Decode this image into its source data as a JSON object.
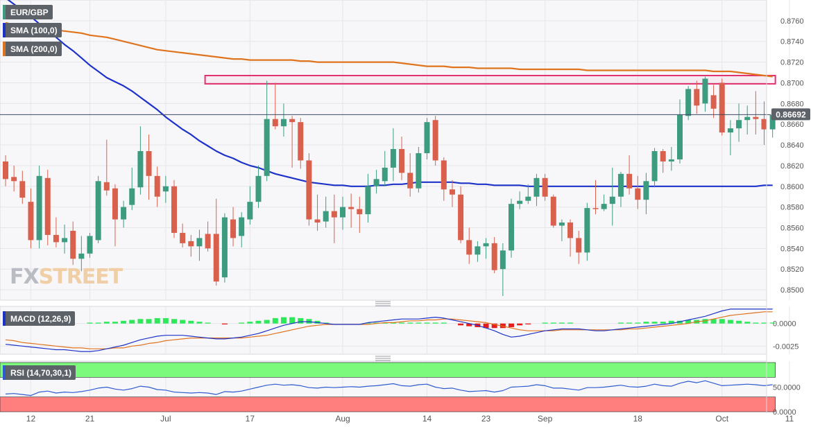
{
  "legend": {
    "symbol": "EUR/GBP",
    "sma100": "SMA (100,0)",
    "sma200": "SMA (200,0)",
    "macd": "MACD (12,26,9)",
    "rsi": "RSI (14,70,30,1)"
  },
  "watermark": {
    "part1": "FX",
    "part2": "STREET",
    "logo_colors": [
      "#b9bcc2",
      "#f1cfa6"
    ]
  },
  "colors": {
    "up": "#3d9b80",
    "down": "#d9604c",
    "sma100": "#1c32c8",
    "sma200": "#e0731d",
    "resistance_box": "#e3316f",
    "macd_line": "#1c32c8",
    "signal_line": "#e0731d",
    "hist_up": "#2ee85a",
    "hist_down": "#e51d1d",
    "rsi_line": "#2f5bd1",
    "rsi_overbought": "#7cfa7c",
    "rsi_oversold": "#ff7f7f",
    "current_price_bg": "#5d6168"
  },
  "chart_data": [
    {
      "type": "candlestick",
      "symbol": "EUR/GBP",
      "timeframe": "daily",
      "current_price": "0.86692",
      "current_price_label": "0.86692",
      "y_ticks": [
        "0.8760",
        "0.8740",
        "0.8720",
        "0.8700",
        "0.8680",
        "0.8660",
        "0.8640",
        "0.8620",
        "0.8600",
        "0.8580",
        "0.8560",
        "0.8540",
        "0.8520",
        "0.8500"
      ],
      "y_tick_values": [
        0.876,
        0.874,
        0.872,
        0.87,
        0.868,
        0.866,
        0.864,
        0.862,
        0.86,
        0.858,
        0.856,
        0.854,
        0.852,
        0.85
      ],
      "ylim": [
        0.849,
        0.878
      ],
      "x_ticks": [
        "12",
        "21",
        "Jul",
        "17",
        "Aug",
        "14",
        "23",
        "Sep",
        "18",
        "Oct",
        "11"
      ],
      "x_tick_index": [
        3,
        10,
        19,
        29,
        40,
        50,
        57,
        64,
        75,
        85,
        93
      ],
      "resistance_zone": {
        "y_low": 0.8699,
        "y_high": 0.8707,
        "from_index": 24,
        "to_index": 91
      },
      "candles": [
        [
          0.8624,
          0.8607,
          0.863,
          0.86
        ],
        [
          0.8609,
          0.8605,
          0.862,
          0.8595
        ],
        [
          0.8605,
          0.8589,
          0.8615,
          0.8583
        ],
        [
          0.8585,
          0.8548,
          0.8598,
          0.854
        ],
        [
          0.8548,
          0.861,
          0.862,
          0.854
        ],
        [
          0.8608,
          0.8553,
          0.8616,
          0.8543
        ],
        [
          0.8553,
          0.8546,
          0.857,
          0.8541
        ],
        [
          0.8546,
          0.855,
          0.8563,
          0.8535
        ],
        [
          0.8557,
          0.853,
          0.8566,
          0.8524
        ],
        [
          0.853,
          0.8535,
          0.8552,
          0.8518
        ],
        [
          0.8535,
          0.8552,
          0.8555,
          0.8531
        ],
        [
          0.8548,
          0.8605,
          0.861,
          0.8545
        ],
        [
          0.8604,
          0.8596,
          0.8645,
          0.8591
        ],
        [
          0.8598,
          0.8568,
          0.8602,
          0.8542
        ],
        [
          0.8568,
          0.858,
          0.8586,
          0.856
        ],
        [
          0.8582,
          0.8598,
          0.8618,
          0.8577
        ],
        [
          0.8599,
          0.8634,
          0.8658,
          0.8592
        ],
        [
          0.8634,
          0.861,
          0.865,
          0.8587
        ],
        [
          0.861,
          0.859,
          0.8619,
          0.858
        ],
        [
          0.8595,
          0.86,
          0.861,
          0.8584
        ],
        [
          0.86,
          0.8555,
          0.8606,
          0.855
        ],
        [
          0.8555,
          0.8545,
          0.8564,
          0.8541
        ],
        [
          0.8547,
          0.8542,
          0.8553,
          0.8532
        ],
        [
          0.8542,
          0.855,
          0.8558,
          0.8528
        ],
        [
          0.8554,
          0.854,
          0.8566,
          0.8537
        ],
        [
          0.8554,
          0.8508,
          0.8588,
          0.8504
        ],
        [
          0.8512,
          0.857,
          0.8574,
          0.8507
        ],
        [
          0.8568,
          0.855,
          0.858,
          0.8542
        ],
        [
          0.8552,
          0.857,
          0.8575,
          0.8541
        ],
        [
          0.8568,
          0.8585,
          0.86,
          0.8563
        ],
        [
          0.8585,
          0.861,
          0.862,
          0.8579
        ],
        [
          0.861,
          0.8665,
          0.8702,
          0.8605
        ],
        [
          0.8665,
          0.8658,
          0.87,
          0.8655
        ],
        [
          0.8658,
          0.8665,
          0.868,
          0.8648
        ],
        [
          0.8665,
          0.8662,
          0.8668,
          0.8618
        ],
        [
          0.8662,
          0.8625,
          0.8666,
          0.8617
        ],
        [
          0.8625,
          0.8568,
          0.8632,
          0.8562
        ],
        [
          0.8568,
          0.8565,
          0.8592,
          0.8557
        ],
        [
          0.8566,
          0.8576,
          0.859,
          0.856
        ],
        [
          0.8576,
          0.857,
          0.8592,
          0.8545
        ],
        [
          0.857,
          0.858,
          0.859,
          0.8558
        ],
        [
          0.858,
          0.8578,
          0.8593,
          0.856
        ],
        [
          0.8578,
          0.8573,
          0.859,
          0.8555
        ],
        [
          0.8573,
          0.86,
          0.8612,
          0.8565
        ],
        [
          0.86,
          0.8607,
          0.8616,
          0.8593
        ],
        [
          0.8605,
          0.8618,
          0.8634,
          0.86
        ],
        [
          0.8618,
          0.8636,
          0.8656,
          0.8605
        ],
        [
          0.8636,
          0.8613,
          0.8648,
          0.8606
        ],
        [
          0.8613,
          0.8598,
          0.8632,
          0.859
        ],
        [
          0.8598,
          0.8632,
          0.8638,
          0.8594
        ],
        [
          0.8632,
          0.8662,
          0.8666,
          0.8626
        ],
        [
          0.8664,
          0.8625,
          0.8668,
          0.862
        ],
        [
          0.8625,
          0.8597,
          0.8628,
          0.8586
        ],
        [
          0.8597,
          0.8592,
          0.8606,
          0.858
        ],
        [
          0.8592,
          0.8548,
          0.86,
          0.8545
        ],
        [
          0.8548,
          0.8534,
          0.856,
          0.8525
        ],
        [
          0.8534,
          0.8542,
          0.8547,
          0.8527
        ],
        [
          0.8542,
          0.8545,
          0.855,
          0.853
        ],
        [
          0.8545,
          0.8519,
          0.8551,
          0.8516
        ],
        [
          0.852,
          0.8538,
          0.8545,
          0.8494
        ],
        [
          0.8538,
          0.8583,
          0.8588,
          0.8531
        ],
        [
          0.8583,
          0.8586,
          0.8595,
          0.8578
        ],
        [
          0.8586,
          0.859,
          0.8602,
          0.8583
        ],
        [
          0.859,
          0.8608,
          0.8612,
          0.8581
        ],
        [
          0.8608,
          0.859,
          0.8612,
          0.8586
        ],
        [
          0.859,
          0.8562,
          0.8592,
          0.856
        ],
        [
          0.8562,
          0.8565,
          0.8568,
          0.8547
        ],
        [
          0.8565,
          0.855,
          0.8568,
          0.8532
        ],
        [
          0.855,
          0.8536,
          0.8557,
          0.8525
        ],
        [
          0.8536,
          0.8579,
          0.8584,
          0.8528
        ],
        [
          0.8579,
          0.8578,
          0.8606,
          0.8573
        ],
        [
          0.8578,
          0.8583,
          0.8592,
          0.8576
        ],
        [
          0.8583,
          0.859,
          0.8618,
          0.8562
        ],
        [
          0.859,
          0.8612,
          0.8614,
          0.858
        ],
        [
          0.8612,
          0.8598,
          0.863,
          0.8592
        ],
        [
          0.8598,
          0.8587,
          0.861,
          0.8578
        ],
        [
          0.8587,
          0.8605,
          0.8613,
          0.8573
        ],
        [
          0.8605,
          0.8634,
          0.8637,
          0.8599
        ],
        [
          0.8634,
          0.8624,
          0.8636,
          0.8613
        ],
        [
          0.8624,
          0.8626,
          0.8638,
          0.8615
        ],
        [
          0.8626,
          0.8669,
          0.8684,
          0.8622
        ],
        [
          0.8668,
          0.8694,
          0.8697,
          0.8664
        ],
        [
          0.8694,
          0.8678,
          0.8702,
          0.867
        ],
        [
          0.868,
          0.8704,
          0.8706,
          0.8672
        ],
        [
          0.8688,
          0.8675,
          0.8698,
          0.8666
        ],
        [
          0.87,
          0.8652,
          0.8704,
          0.8649
        ],
        [
          0.8652,
          0.8656,
          0.8664,
          0.863
        ],
        [
          0.8656,
          0.8664,
          0.868,
          0.8643
        ],
        [
          0.8664,
          0.8667,
          0.8678,
          0.865
        ],
        [
          0.8667,
          0.8665,
          0.8692,
          0.865
        ],
        [
          0.8665,
          0.8655,
          0.8682,
          0.864
        ],
        [
          0.8655,
          0.8669,
          0.8672,
          0.8647
        ]
      ],
      "sma100": [
        0.8782,
        0.8776,
        0.877,
        0.8764,
        0.8757,
        0.8751,
        0.8744,
        0.8737,
        0.8731,
        0.8724,
        0.8717,
        0.8711,
        0.8705,
        0.8701,
        0.8697,
        0.8692,
        0.8686,
        0.868,
        0.8674,
        0.8667,
        0.8661,
        0.8655,
        0.865,
        0.8644,
        0.8639,
        0.8634,
        0.863,
        0.8627,
        0.8623,
        0.862,
        0.8618,
        0.8615,
        0.8612,
        0.861,
        0.8608,
        0.8606,
        0.8604,
        0.8603,
        0.8602,
        0.8601,
        0.8601,
        0.86,
        0.86,
        0.86,
        0.8601,
        0.8601,
        0.8602,
        0.8602,
        0.8603,
        0.8604,
        0.8604,
        0.8604,
        0.8604,
        0.8604,
        0.8603,
        0.8603,
        0.8602,
        0.8602,
        0.8601,
        0.8601,
        0.8601,
        0.8601,
        0.86,
        0.86,
        0.86,
        0.86,
        0.86,
        0.86,
        0.86,
        0.86,
        0.86,
        0.86,
        0.86,
        0.86,
        0.86,
        0.86,
        0.86,
        0.86,
        0.86,
        0.86,
        0.86,
        0.86,
        0.86,
        0.86,
        0.86,
        0.86,
        0.86,
        0.86,
        0.86,
        0.86,
        0.8601,
        0.8601
      ],
      "sma200": [
        0.8758,
        0.8756,
        0.8755,
        0.8754,
        0.8753,
        0.8752,
        0.8751,
        0.875,
        0.8749,
        0.8748,
        0.8746,
        0.8745,
        0.8744,
        0.8742,
        0.874,
        0.8738,
        0.8736,
        0.8734,
        0.8732,
        0.8731,
        0.873,
        0.8729,
        0.8728,
        0.8727,
        0.8726,
        0.8725,
        0.8724,
        0.8723,
        0.8723,
        0.8722,
        0.8722,
        0.8722,
        0.8722,
        0.8722,
        0.8722,
        0.8721,
        0.8721,
        0.872,
        0.872,
        0.872,
        0.872,
        0.872,
        0.872,
        0.872,
        0.872,
        0.872,
        0.872,
        0.8719,
        0.8718,
        0.8717,
        0.8716,
        0.8716,
        0.8716,
        0.8715,
        0.8715,
        0.8715,
        0.8714,
        0.8714,
        0.8714,
        0.8714,
        0.8714,
        0.8713,
        0.8713,
        0.8713,
        0.8713,
        0.8713,
        0.8713,
        0.8713,
        0.8713,
        0.8712,
        0.8712,
        0.8712,
        0.8712,
        0.8712,
        0.8712,
        0.8712,
        0.8712,
        0.8712,
        0.8712,
        0.8712,
        0.8712,
        0.8712,
        0.8712,
        0.8712,
        0.8711,
        0.8711,
        0.8711,
        0.871,
        0.8709,
        0.8708,
        0.8707,
        0.8706
      ]
    },
    {
      "type": "macd",
      "title": "MACD (12,26,9)",
      "y_ticks": [
        "0.0000",
        "-0.0025"
      ],
      "y_tick_values": [
        0.0,
        -0.0025
      ],
      "ylim": [
        -0.0034,
        0.0019
      ],
      "macd": [
        -0.0023,
        -0.0024,
        -0.0025,
        -0.0026,
        -0.0027,
        -0.0028,
        -0.0029,
        -0.0029,
        -0.003,
        -0.0031,
        -0.0031,
        -0.003,
        -0.0028,
        -0.0026,
        -0.0024,
        -0.0021,
        -0.0018,
        -0.0016,
        -0.0014,
        -0.0013,
        -0.0013,
        -0.0013,
        -0.0014,
        -0.0015,
        -0.0016,
        -0.0017,
        -0.0017,
        -0.0016,
        -0.0015,
        -0.0013,
        -0.0011,
        -0.0008,
        -0.0005,
        -0.0002,
        0.0,
        0.0002,
        0.0002,
        0.0001,
        0.0,
        -0.0001,
        -0.0001,
        -0.0001,
        -0.0001,
        0.0001,
        0.0002,
        0.0003,
        0.0004,
        0.0005,
        0.0005,
        0.0005,
        0.0006,
        0.0007,
        0.0006,
        0.0004,
        0.0002,
        0.0,
        -0.0002,
        -0.0005,
        -0.0008,
        -0.0012,
        -0.0015,
        -0.0014,
        -0.0012,
        -0.001,
        -0.0008,
        -0.0007,
        -0.0006,
        -0.0006,
        -0.0006,
        -0.0007,
        -0.0008,
        -0.0008,
        -0.0007,
        -0.0006,
        -0.0005,
        -0.0004,
        -0.0003,
        -0.0002,
        -0.0001,
        0.0,
        0.0002,
        0.0004,
        0.0006,
        0.0008,
        0.0011,
        0.0014,
        0.0016,
        0.0016,
        0.0016,
        0.0016,
        0.0016,
        0.0016
      ],
      "signal": [
        -0.0018,
        -0.0019,
        -0.0021,
        -0.0022,
        -0.0023,
        -0.0024,
        -0.0025,
        -0.0026,
        -0.0027,
        -0.0027,
        -0.0028,
        -0.0028,
        -0.0028,
        -0.0027,
        -0.0027,
        -0.0025,
        -0.0024,
        -0.0022,
        -0.0021,
        -0.0019,
        -0.0018,
        -0.0017,
        -0.0016,
        -0.0016,
        -0.0016,
        -0.0016,
        -0.0016,
        -0.0016,
        -0.0016,
        -0.0015,
        -0.0014,
        -0.0013,
        -0.0011,
        -0.0009,
        -0.0007,
        -0.0005,
        -0.0003,
        -0.0002,
        -0.0001,
        -0.0001,
        -0.0001,
        -0.0001,
        -0.0001,
        -0.0001,
        0.0,
        0.0001,
        0.0001,
        0.0002,
        0.0003,
        0.0003,
        0.0004,
        0.0004,
        0.0005,
        0.0005,
        0.0004,
        0.0003,
        0.0002,
        0.0001,
        -0.0001,
        -0.0003,
        -0.0005,
        -0.0007,
        -0.0008,
        -0.0008,
        -0.0008,
        -0.0008,
        -0.0007,
        -0.0007,
        -0.0007,
        -0.0007,
        -0.0007,
        -0.0007,
        -0.0007,
        -0.0007,
        -0.0006,
        -0.0006,
        -0.0005,
        -0.0004,
        -0.0003,
        -0.0002,
        -0.0001,
        0.0,
        0.0002,
        0.0003,
        0.0005,
        0.0007,
        0.0009,
        0.001,
        0.0011,
        0.0012,
        0.0013,
        0.0013
      ],
      "histogram": [
        -0.0001,
        -0.0001,
        -0.0001,
        -0.0001,
        -0.0001,
        -0.0001,
        -0.0001,
        -0.0001,
        0.0,
        0.0,
        0.0001,
        0.0001,
        0.0002,
        0.0002,
        0.0003,
        0.0004,
        0.0005,
        0.0005,
        0.0006,
        0.0006,
        0.0005,
        0.0004,
        0.0003,
        0.0002,
        0.0001,
        0.0,
        -0.0001,
        0.0,
        0.0001,
        0.0002,
        0.0003,
        0.0004,
        0.0006,
        0.0007,
        0.0007,
        0.0006,
        0.0005,
        0.0003,
        0.0001,
        0.0,
        0.0,
        0.0,
        0.0,
        0.0001,
        0.0001,
        0.0001,
        0.0001,
        0.0001,
        0.0001,
        0.0001,
        0.0001,
        0.0001,
        0.0001,
        0.0,
        -0.0002,
        -0.0003,
        -0.0004,
        -0.0005,
        -0.0005,
        -0.0005,
        -0.0004,
        -0.0002,
        -0.0001,
        0.0,
        0.0001,
        0.0001,
        0.0001,
        0.0001,
        0.0,
        0.0,
        0.0,
        0.0,
        0.0,
        0.0001,
        0.0001,
        0.0001,
        0.0002,
        0.0002,
        0.0002,
        0.0003,
        0.0003,
        0.0004,
        0.0004,
        0.0005,
        0.0005,
        0.0005,
        0.0004,
        0.0003,
        0.0002,
        0.0001,
        0.0001,
        0.0001
      ]
    },
    {
      "type": "rsi",
      "title": "RSI (14,70,30,1)",
      "y_ticks": [
        "50.0000",
        "0.0000"
      ],
      "y_tick_values": [
        50,
        0
      ],
      "ylim": [
        0,
        100
      ],
      "overbought": 70,
      "oversold": 30,
      "rsi": [
        36,
        37,
        35,
        33,
        40,
        42,
        38,
        40,
        39,
        41,
        44,
        48,
        50,
        46,
        44,
        47,
        52,
        50,
        45,
        44,
        40,
        39,
        38,
        39,
        38,
        35,
        41,
        40,
        42,
        46,
        50,
        54,
        56,
        54,
        55,
        53,
        49,
        48,
        50,
        49,
        50,
        51,
        50,
        52,
        53,
        55,
        57,
        53,
        52,
        55,
        56,
        50,
        47,
        48,
        44,
        41,
        42,
        43,
        40,
        43,
        50,
        51,
        52,
        55,
        53,
        48,
        48,
        46,
        44,
        49,
        49,
        50,
        52,
        54,
        51,
        50,
        52,
        56,
        53,
        52,
        58,
        62,
        59,
        63,
        58,
        53,
        54,
        55,
        56,
        55,
        53,
        55
      ]
    }
  ]
}
